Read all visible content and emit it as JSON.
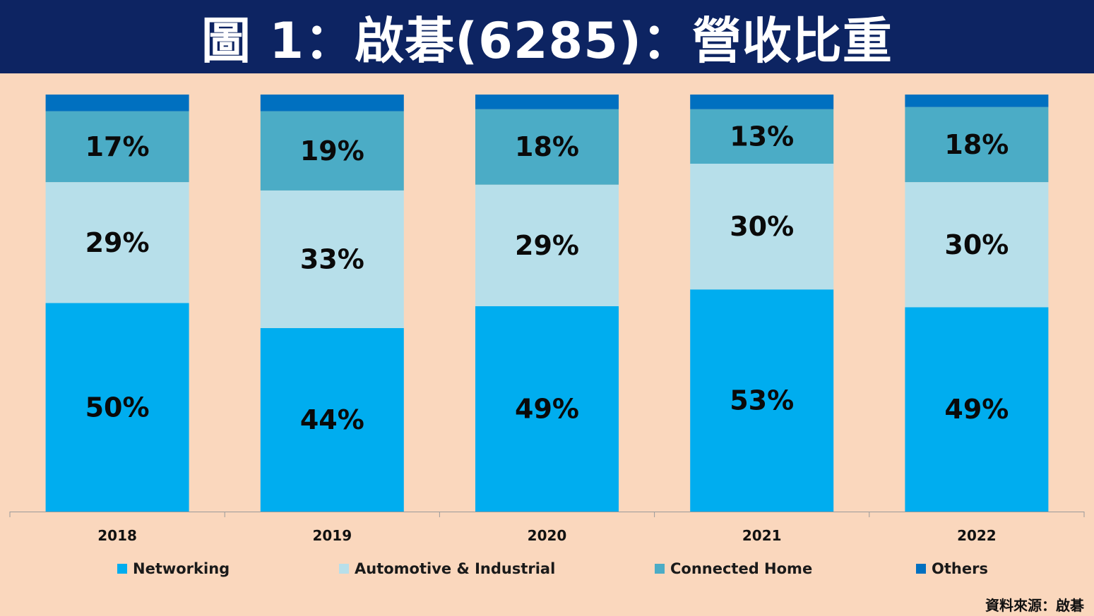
{
  "title": "圖 1：啟碁(6285)：營收比重",
  "source": "資料來源：啟碁",
  "colors": {
    "header_bg": "#0d2462",
    "page_bg": "#fad7bd",
    "networking": "#00adef",
    "automotive_industrial": "#b7dfea",
    "connected_home": "#4bacc6",
    "others": "#0070c0",
    "axis": "#9a9a9a"
  },
  "chart_data": {
    "type": "bar",
    "stacked": true,
    "normalized_percent": true,
    "categories": [
      "2018",
      "2019",
      "2020",
      "2021",
      "2022"
    ],
    "series": [
      {
        "name": "Networking",
        "values": [
          50,
          44,
          49,
          53,
          49
        ],
        "labels": [
          "50%",
          "44%",
          "49%",
          "53%",
          "49%"
        ]
      },
      {
        "name": "Automotive & Industrial",
        "values": [
          29,
          33,
          29,
          30,
          30
        ],
        "labels": [
          "29%",
          "33%",
          "29%",
          "30%",
          "30%"
        ]
      },
      {
        "name": "Connected Home",
        "values": [
          17,
          19,
          18,
          13,
          18
        ],
        "labels": [
          "17%",
          "19%",
          "18%",
          "13%",
          "18%"
        ]
      },
      {
        "name": "Others",
        "values": [
          4,
          4,
          3.5,
          3.5,
          3
        ],
        "labels": [
          "",
          "",
          "",
          "",
          ""
        ]
      }
    ],
    "ylim": [
      0,
      100
    ],
    "legend_position": "bottom",
    "grid": false
  }
}
